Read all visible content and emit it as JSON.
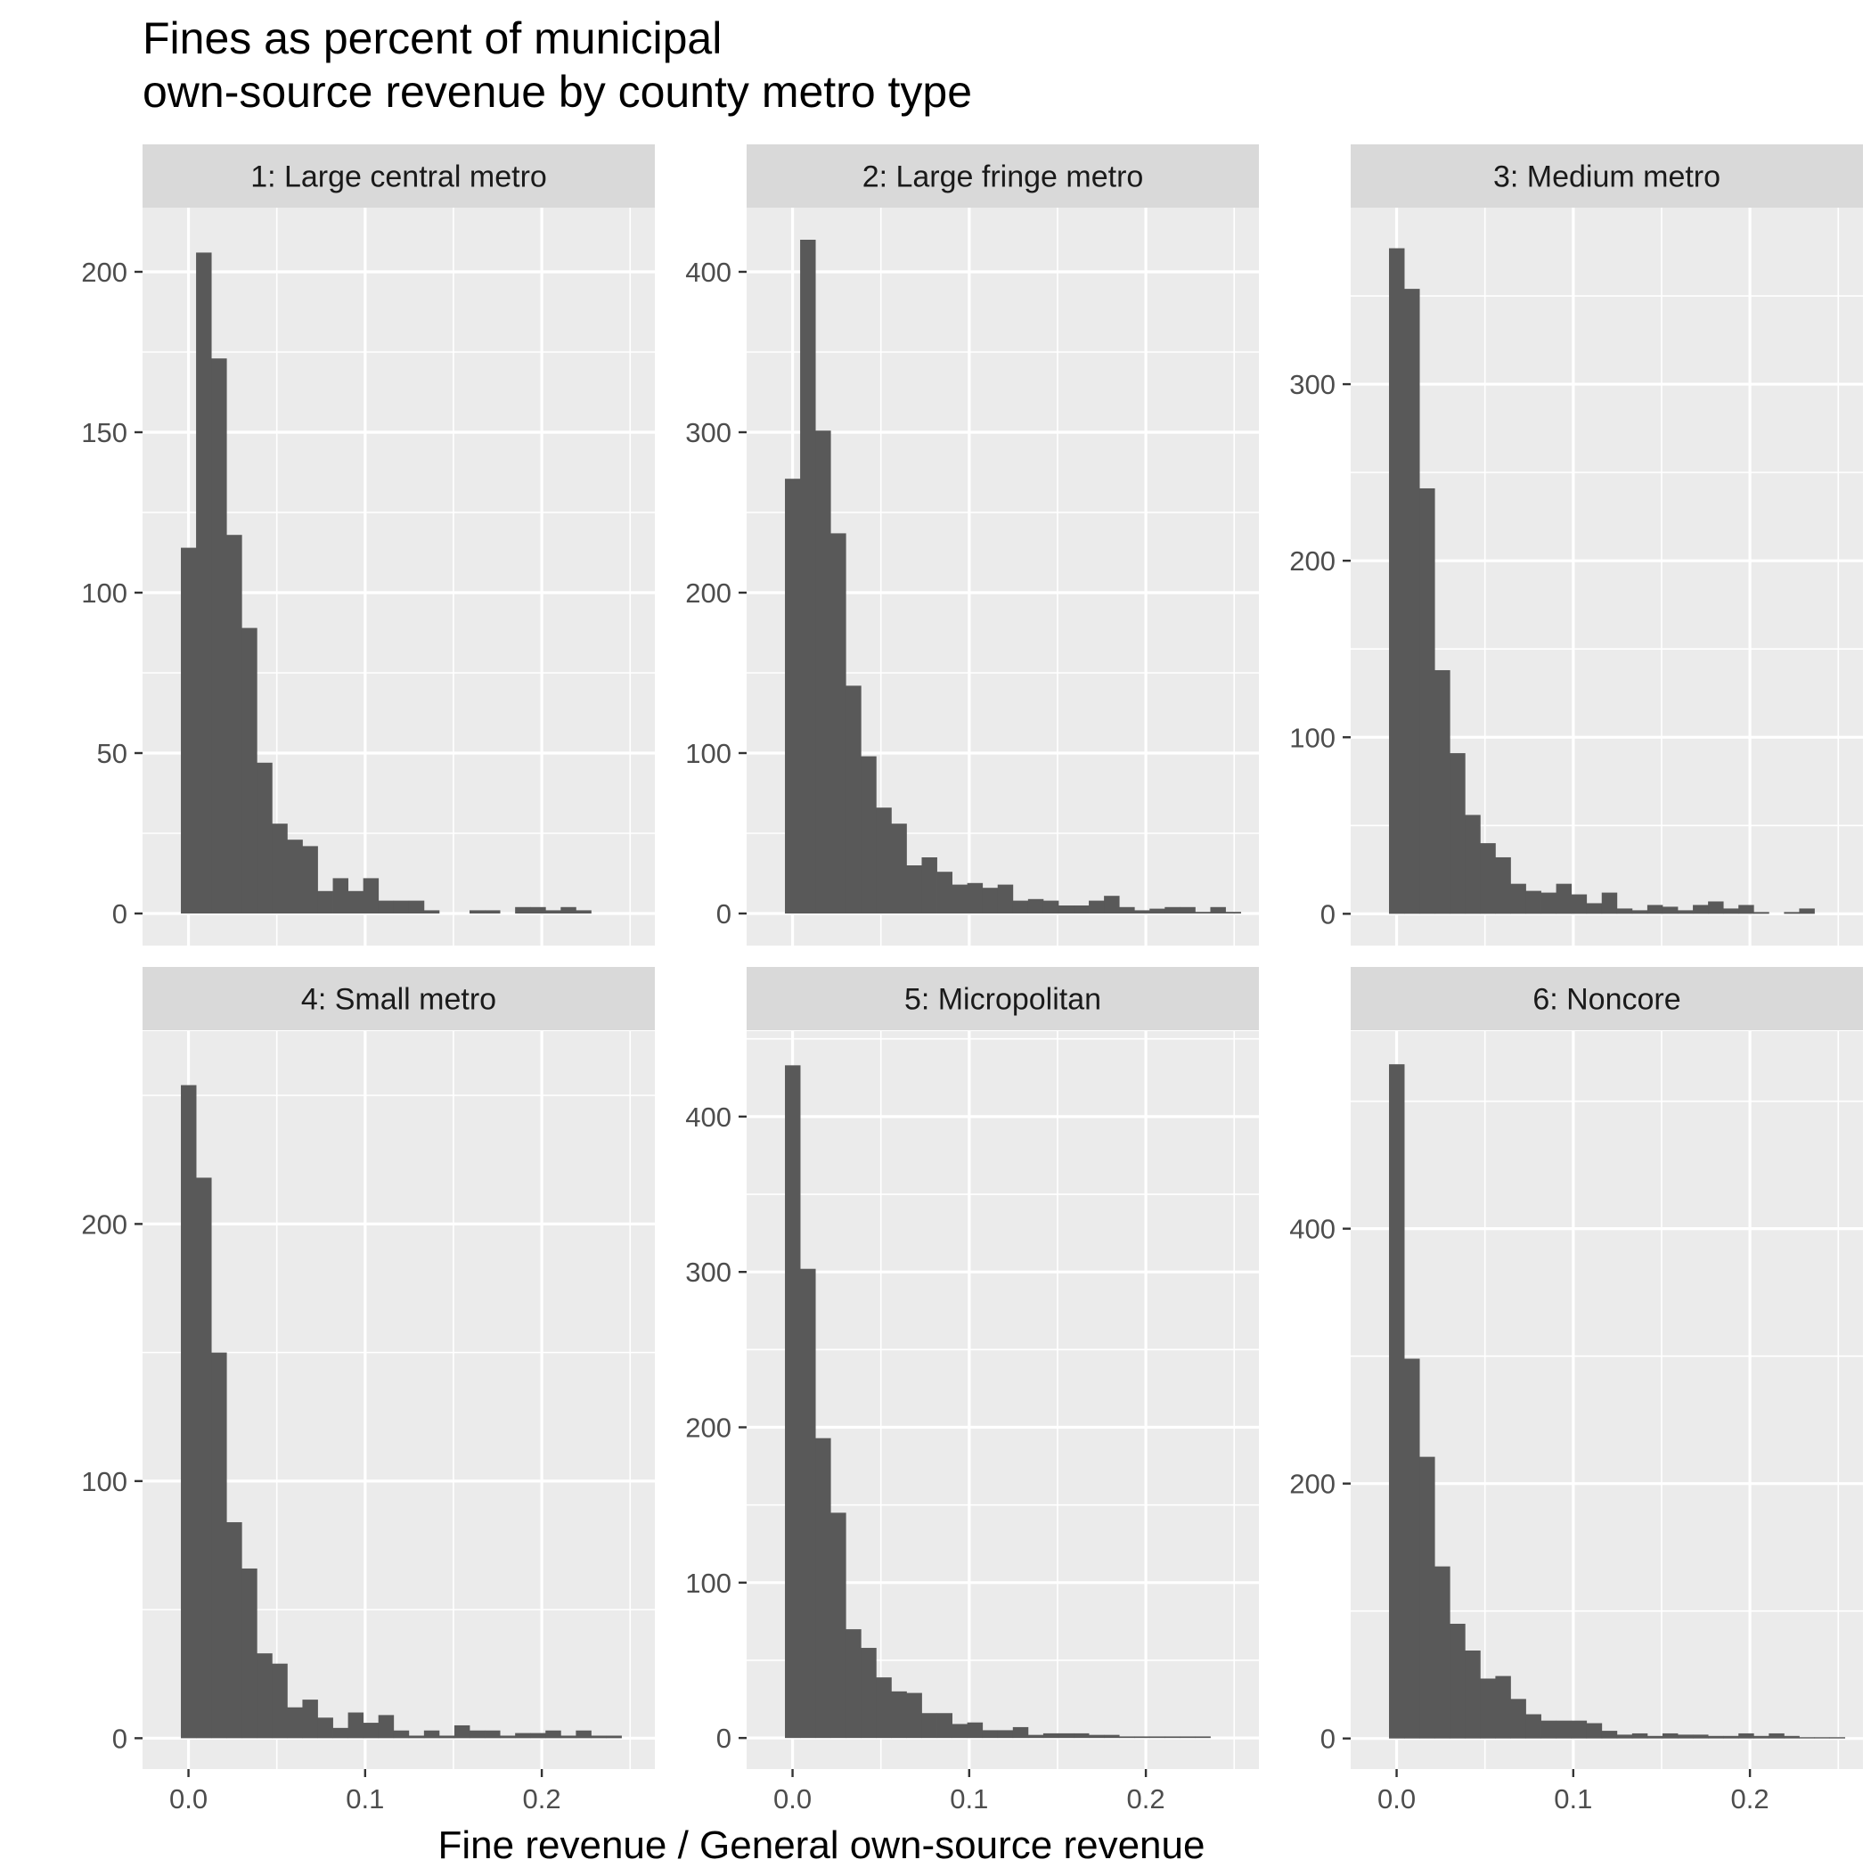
{
  "chart_data": {
    "type": "bar",
    "title_lines": [
      "Fines as percent of municipal",
      "own-source revenue by county metro type"
    ],
    "xlabel": "Fine revenue / General own-source revenue",
    "ylabel": "",
    "bin_width": 0.0086,
    "xlim": [
      -0.026,
      0.264
    ],
    "x_ticks": [
      0.0,
      0.1,
      0.2
    ],
    "x_tick_labels": [
      "0.0",
      "0.1",
      "0.2"
    ],
    "bar_color": "#595959",
    "panel_background": "#ebebeb",
    "strip_background": "#d9d9d9",
    "grid": true,
    "panels": [
      {
        "strip": "1: Large central metro",
        "ylim": [
          -10,
          220
        ],
        "y_ticks": [
          0,
          50,
          100,
          150,
          200
        ],
        "bin_starts": [
          -0.0043,
          0.0043,
          0.0129,
          0.0215,
          0.0301,
          0.0387,
          0.0473,
          0.0559,
          0.0645,
          0.0731,
          0.0817,
          0.0903,
          0.0989,
          0.1075,
          0.1161,
          0.1247,
          0.1333,
          0.1419,
          0.1505,
          0.1591,
          0.1677,
          0.1763,
          0.1849,
          0.1935,
          0.2021,
          0.2107,
          0.2193,
          0.2279,
          0.2365
        ],
        "counts": [
          114,
          206,
          173,
          118,
          89,
          47,
          28,
          23,
          21,
          7,
          11,
          7,
          11,
          4,
          4,
          4,
          1,
          0,
          0,
          1,
          1,
          0,
          2,
          2,
          1,
          2,
          1,
          0,
          0
        ]
      },
      {
        "strip": "2: Large fringe metro",
        "ylim": [
          -20,
          440
        ],
        "y_ticks": [
          0,
          100,
          200,
          300,
          400
        ],
        "bin_starts": [
          -0.0043,
          0.0043,
          0.0129,
          0.0215,
          0.0301,
          0.0387,
          0.0473,
          0.0559,
          0.0645,
          0.0731,
          0.0817,
          0.0903,
          0.0989,
          0.1075,
          0.1161,
          0.1247,
          0.1333,
          0.1419,
          0.1505,
          0.1591,
          0.1677,
          0.1763,
          0.1849,
          0.1935,
          0.2021,
          0.2107,
          0.2193,
          0.2279,
          0.2365,
          0.2451
        ],
        "counts": [
          271,
          420,
          301,
          237,
          142,
          98,
          66,
          56,
          30,
          35,
          26,
          18,
          19,
          16,
          18,
          8,
          9,
          8,
          5,
          5,
          8,
          11,
          4,
          2,
          3,
          4,
          4,
          1,
          4,
          1
        ]
      },
      {
        "strip": "3: Medium metro",
        "ylim": [
          -18,
          400
        ],
        "y_ticks": [
          0,
          100,
          200,
          300
        ],
        "bin_starts": [
          -0.0043,
          0.0043,
          0.0129,
          0.0215,
          0.0301,
          0.0387,
          0.0473,
          0.0559,
          0.0645,
          0.0731,
          0.0817,
          0.0903,
          0.0989,
          0.1075,
          0.1161,
          0.1247,
          0.1333,
          0.1419,
          0.1505,
          0.1591,
          0.1677,
          0.1763,
          0.1849,
          0.1935,
          0.2021,
          0.2107,
          0.2193,
          0.2279,
          0.2365
        ],
        "counts": [
          377,
          354,
          241,
          138,
          91,
          56,
          40,
          32,
          17,
          13,
          12,
          17,
          11,
          6,
          12,
          3,
          2,
          5,
          4,
          2,
          5,
          7,
          3,
          5,
          1,
          0,
          1,
          3,
          0
        ]
      },
      {
        "strip": "4: Small metro",
        "ylim": [
          -12,
          275
        ],
        "y_ticks": [
          0,
          100,
          200
        ],
        "bin_starts": [
          -0.0043,
          0.0043,
          0.0129,
          0.0215,
          0.0301,
          0.0387,
          0.0473,
          0.0559,
          0.0645,
          0.0731,
          0.0817,
          0.0903,
          0.0989,
          0.1075,
          0.1161,
          0.1247,
          0.1333,
          0.1419,
          0.1505,
          0.1591,
          0.1677,
          0.1763,
          0.1849,
          0.1935,
          0.2021,
          0.2107,
          0.2193,
          0.2279,
          0.2365
        ],
        "counts": [
          254,
          218,
          150,
          84,
          66,
          33,
          29,
          12,
          15,
          8,
          4,
          10,
          6,
          9,
          3,
          1,
          3,
          1,
          5,
          3,
          3,
          1,
          2,
          2,
          3,
          1,
          3,
          1,
          1
        ]
      },
      {
        "strip": "5: Micropolitan",
        "ylim": [
          -20,
          455
        ],
        "y_ticks": [
          0,
          100,
          200,
          300,
          400
        ],
        "bin_starts": [
          -0.0043,
          0.0043,
          0.0129,
          0.0215,
          0.0301,
          0.0387,
          0.0473,
          0.0559,
          0.0645,
          0.0731,
          0.0817,
          0.0903,
          0.0989,
          0.1075,
          0.1161,
          0.1247,
          0.1333,
          0.1419,
          0.1505,
          0.1591,
          0.1677,
          0.1763,
          0.1849,
          0.1935,
          0.2021,
          0.2107,
          0.2193,
          0.2279
        ],
        "counts": [
          433,
          302,
          193,
          145,
          70,
          58,
          39,
          30,
          29,
          16,
          16,
          9,
          10,
          5,
          5,
          7,
          2,
          3,
          3,
          3,
          2,
          2,
          1,
          1,
          1,
          1,
          1,
          1
        ]
      },
      {
        "strip": "6: Noncore",
        "ylim": [
          -24,
          555
        ],
        "y_ticks": [
          0,
          200,
          400
        ],
        "bin_starts": [
          -0.0043,
          0.0043,
          0.0129,
          0.0215,
          0.0301,
          0.0387,
          0.0473,
          0.0559,
          0.0645,
          0.0731,
          0.0817,
          0.0903,
          0.0989,
          0.1075,
          0.1161,
          0.1247,
          0.1333,
          0.1419,
          0.1505,
          0.1591,
          0.1677,
          0.1763,
          0.1849,
          0.1935,
          0.2021,
          0.2107,
          0.2193,
          0.2279,
          0.2365,
          0.2451
        ],
        "counts": [
          529,
          298,
          221,
          135,
          90,
          69,
          47,
          49,
          31,
          19,
          14,
          14,
          14,
          12,
          6,
          3,
          4,
          2,
          4,
          3,
          3,
          2,
          2,
          4,
          2,
          4,
          2,
          1,
          1,
          1
        ]
      }
    ]
  }
}
